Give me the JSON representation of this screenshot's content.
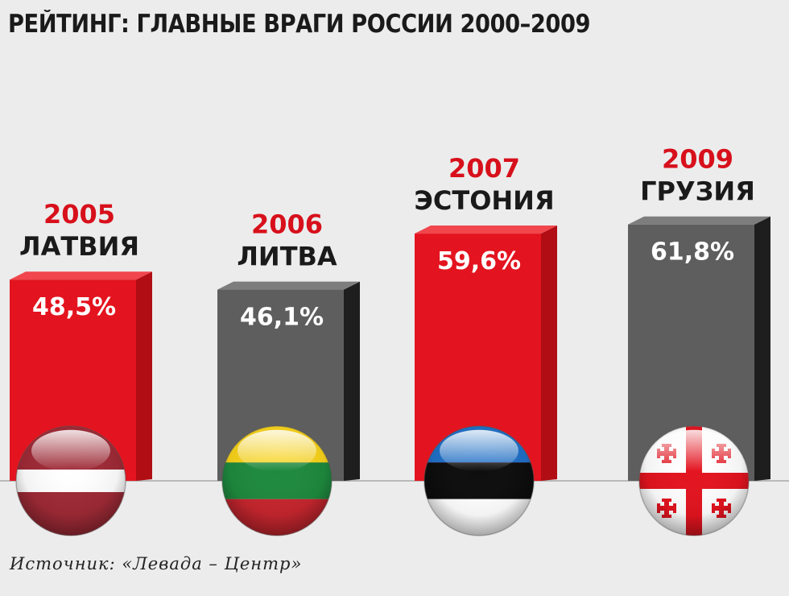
{
  "chart_data": {
    "type": "bar",
    "title": "РЕЙТИНГ: ГЛАВНЫЕ ВРАГИ РОССИИ 2000–2009",
    "categories": [
      "ЛАТВИЯ",
      "ЛИТВА",
      "ЭСТОНИЯ",
      "ГРУЗИЯ"
    ],
    "years": [
      "2005",
      "2006",
      "2007",
      "2009"
    ],
    "values": [
      48.5,
      46.1,
      59.6,
      61.8
    ],
    "value_labels": [
      "48,5%",
      "46,1%",
      "59,6%",
      "61,8%"
    ],
    "flags": [
      "latvia-flag",
      "lithuania-flag",
      "estonia-flag",
      "georgia-flag"
    ],
    "unit": "%",
    "ylim": [
      0,
      70
    ],
    "grid": false,
    "legend": "none",
    "xlabel": "",
    "ylabel": ""
  },
  "source": "Источник: «Левада – Центр»",
  "colors": {
    "background": "#ececec",
    "red_front": "#e3141f",
    "red_side": "#b10d14",
    "red_top": "#f0464c",
    "gray_front": "#5e5e5e",
    "gray_side": "#1e1e1e",
    "gray_top": "#7d7d7d",
    "year_text": "#d7101b",
    "label_text": "#1a1a1a",
    "value_text": "#ffffff",
    "baseline": "#9a9a9a"
  },
  "bar_colors": [
    "red",
    "gray",
    "red",
    "gray"
  ]
}
